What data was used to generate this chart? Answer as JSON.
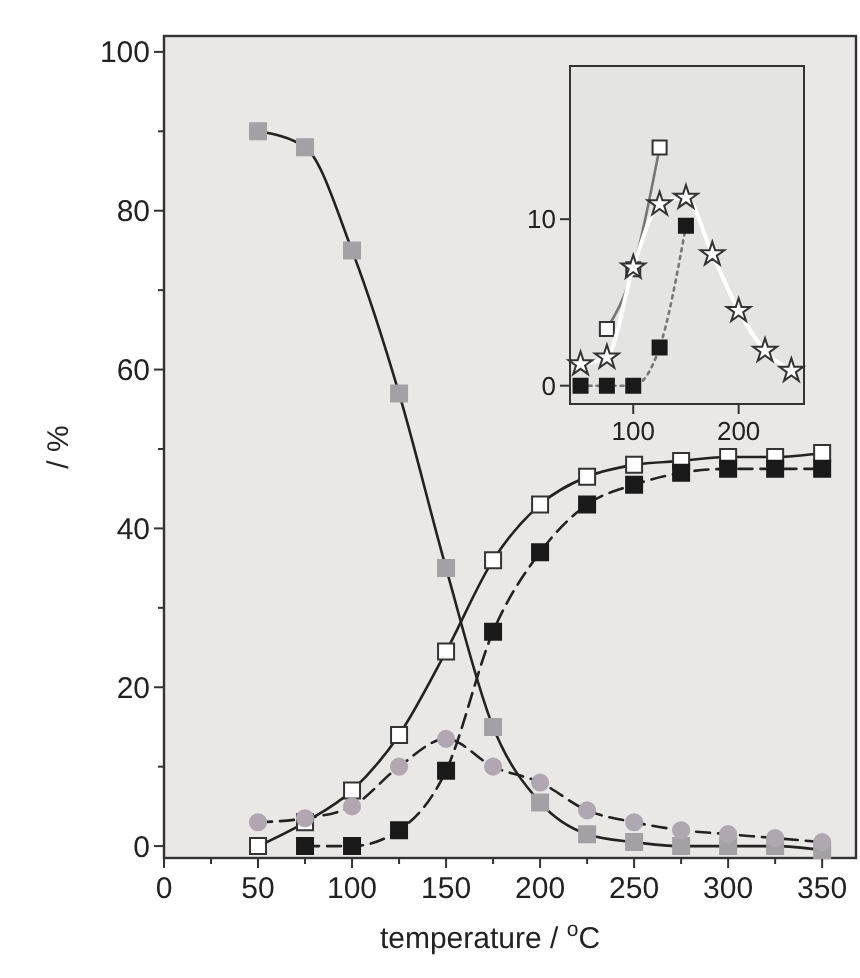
{
  "chart_data": [
    {
      "type": "line",
      "xlabel": "temperature / $^{o}$C",
      "ylabel": "/ %",
      "xlim": [
        0,
        368
      ],
      "ylim": [
        -1.5,
        102
      ],
      "xticks": [
        0,
        {
          "value": 25,
          "label": null
        },
        50,
        {
          "value": 75,
          "label": null
        },
        100,
        {
          "value": 125,
          "label": null
        },
        150,
        {
          "value": 175,
          "label": null
        },
        200,
        {
          "value": 225,
          "label": null
        },
        250,
        {
          "value": 275,
          "label": null
        },
        300,
        {
          "value": 325,
          "label": null
        },
        350
      ],
      "yticks": [
        0,
        {
          "value": 10,
          "label": null
        },
        20,
        {
          "value": 30,
          "label": null
        },
        40,
        {
          "value": 50,
          "label": null
        },
        60,
        {
          "value": 70,
          "label": null
        },
        80,
        {
          "value": 90,
          "label": null
        },
        100
      ],
      "grid": false,
      "series": [
        {
          "color": "#a4a0a4",
          "marker": "square",
          "line_style": "solid",
          "x": [
            50,
            75,
            100,
            125,
            150,
            175,
            200,
            225,
            250,
            275,
            300,
            325,
            350
          ],
          "values": [
            90,
            88,
            75,
            57,
            35,
            15,
            5.5,
            1.5,
            0.5,
            0,
            0,
            0,
            -0.5
          ]
        },
        {
          "color": "#ffffff",
          "marker": "square",
          "line_style": "solid",
          "x": [
            50,
            75,
            100,
            125,
            150,
            175,
            200,
            225,
            250,
            275,
            300,
            325,
            350
          ],
          "values": [
            0,
            3,
            7,
            14,
            24.5,
            36,
            43,
            46.5,
            48,
            48.5,
            49,
            49,
            49.5
          ]
        },
        {
          "color": "#1a1a1a",
          "marker": "square",
          "line_style": "dashed",
          "x": [
            75,
            100,
            125,
            150,
            175,
            200,
            225,
            250,
            275,
            300,
            325,
            350
          ],
          "values": [
            0,
            0,
            2,
            9.5,
            27,
            37,
            43,
            45.5,
            47,
            47.5,
            47.5,
            47.5
          ]
        },
        {
          "color": "#b0a8b0",
          "marker": "circle",
          "line_style": "dashed",
          "x": [
            50,
            75,
            100,
            125,
            150,
            175,
            200,
            225,
            250,
            275,
            300,
            325,
            350
          ],
          "values": [
            3,
            3.5,
            5,
            10,
            13.5,
            10,
            8,
            4.5,
            3,
            2,
            1.5,
            1,
            0.5
          ]
        }
      ]
    },
    {
      "type": "line",
      "xlim": [
        40,
        262
      ],
      "ylim": [
        -1.1,
        19.2
      ],
      "xticks": [
        100,
        200
      ],
      "yticks": [
        0,
        10
      ],
      "grid": false,
      "series": [
        {
          "color": "#ffffff",
          "marker": "square",
          "line_style": "solid",
          "x": [
            75,
            100,
            125
          ],
          "values": [
            3.4,
            7,
            14.3
          ]
        },
        {
          "color": "#1a1a1a",
          "marker": "square",
          "line_style": "dotted",
          "x": [
            50,
            75,
            100,
            125,
            150
          ],
          "values": [
            0,
            0,
            0,
            2.3,
            9.6
          ]
        },
        {
          "color": "#ffffff",
          "marker": "star",
          "line_style": "solid",
          "x": [
            50,
            75,
            100,
            125,
            150,
            175,
            200,
            225,
            250
          ],
          "values": [
            1.3,
            1.7,
            7.1,
            10.9,
            11.3,
            7.9,
            4.5,
            2.1,
            0.9
          ]
        }
      ]
    }
  ]
}
